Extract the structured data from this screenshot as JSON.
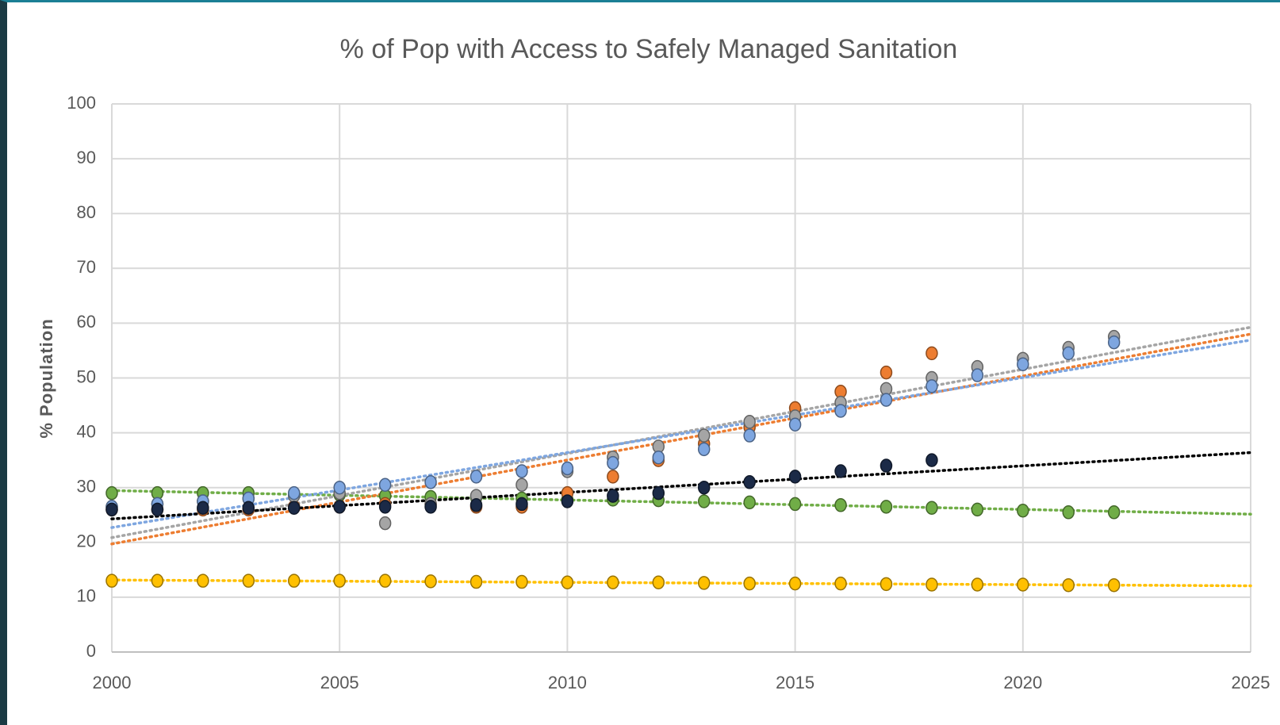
{
  "chart_data": {
    "type": "scatter",
    "title": "% of Pop with Access to Safely Managed Sanitation",
    "y_label": "% Population",
    "x": [
      2000,
      2001,
      2002,
      2003,
      2004,
      2005,
      2006,
      2007,
      2008,
      2009,
      2010,
      2011,
      2012,
      2013,
      2014,
      2015,
      2016,
      2017,
      2018,
      2019,
      2020,
      2021,
      2022
    ],
    "xlim": [
      2000,
      2025
    ],
    "xticks": [
      2000,
      2005,
      2010,
      2015,
      2020,
      2025
    ],
    "ylim": [
      0,
      100
    ],
    "yticks": [
      0,
      10,
      20,
      30,
      40,
      50,
      60,
      70,
      80,
      90,
      100
    ],
    "grid": true,
    "trendline": "linear",
    "series": [
      {
        "color": "#70ad47",
        "values": [
          29,
          29,
          29,
          29,
          28.8,
          28.7,
          28.5,
          28.3,
          28.2,
          28,
          27.8,
          27.8,
          27.7,
          27.5,
          27.3,
          27,
          26.8,
          26.5,
          26.3,
          26,
          25.8,
          25.5,
          25.5
        ]
      },
      {
        "color": "#ffc000",
        "values": [
          13,
          13,
          13,
          13,
          13,
          13,
          13,
          12.9,
          12.8,
          12.8,
          12.7,
          12.7,
          12.7,
          12.6,
          12.5,
          12.5,
          12.5,
          12.4,
          12.3,
          12.3,
          12.3,
          12.2,
          12.2
        ]
      },
      {
        "color": "#ed7d31",
        "values": [
          26,
          26,
          26,
          26,
          26.5,
          26.5,
          27,
          27,
          26.5,
          26.5,
          29,
          32,
          35,
          38,
          41,
          44.5,
          47.5,
          51,
          54.5,
          null,
          null,
          null,
          null
        ]
      },
      {
        "color": "#a5a5a5",
        "values": [
          26.5,
          27,
          27.5,
          28,
          28.5,
          29,
          23.5,
          27,
          28.5,
          30.5,
          33,
          35.5,
          37.5,
          39.5,
          42,
          43,
          45.5,
          48,
          50,
          52,
          53.5,
          55.5,
          57.5
        ]
      },
      {
        "color": "#7ea6e0",
        "values": [
          26.5,
          27,
          27.5,
          28,
          29,
          30,
          30.5,
          31,
          32,
          33,
          33.5,
          34.5,
          35.5,
          37,
          39.5,
          41.5,
          44,
          46,
          48.5,
          50.5,
          52.5,
          54.5,
          56.5
        ]
      },
      {
        "color": "#1b2a47",
        "values": [
          26,
          26,
          26.3,
          26.3,
          26.3,
          26.5,
          26.5,
          26.5,
          26.8,
          27,
          27.5,
          28.5,
          29,
          30,
          31,
          32,
          33,
          34,
          35,
          null,
          null,
          null,
          null
        ]
      }
    ]
  }
}
